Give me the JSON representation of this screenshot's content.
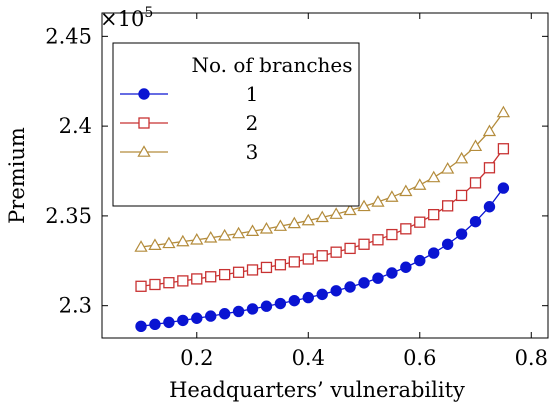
{
  "chart_data": {
    "type": "line",
    "title": "",
    "xlabel": "Headquarters’ vulnerability",
    "ylabel": "Premium",
    "y_multiplier_label": "×10",
    "y_multiplier_exponent": "5",
    "xlim": [
      0.03,
      0.83
    ],
    "ylim": [
      2.282,
      2.463
    ],
    "x_ticks": [
      0.2,
      0.4,
      0.6,
      0.8
    ],
    "x_tick_labels": [
      "0.2",
      "0.4",
      "0.6",
      "0.8"
    ],
    "y_ticks": [
      2.3,
      2.35,
      2.4,
      2.45
    ],
    "y_tick_labels": [
      "2.3",
      "2.35",
      "2.4",
      "2.45"
    ],
    "grid": false,
    "legend": {
      "title": "No. of branches",
      "placement": "top-left"
    },
    "x": [
      0.1,
      0.125,
      0.15,
      0.175,
      0.2,
      0.225,
      0.25,
      0.275,
      0.3,
      0.325,
      0.35,
      0.375,
      0.4,
      0.425,
      0.45,
      0.475,
      0.5,
      0.525,
      0.55,
      0.575,
      0.6,
      0.625,
      0.65,
      0.675,
      0.7,
      0.725,
      0.75
    ],
    "series": [
      {
        "name": "1",
        "color": "#0a14d2",
        "marker": "circle",
        "values": [
          2.2885,
          2.2896,
          2.2907,
          2.2918,
          2.293,
          2.2942,
          2.2955,
          2.2968,
          2.2982,
          2.2997,
          2.3012,
          2.3028,
          2.3045,
          2.3063,
          2.3083,
          2.3104,
          2.3127,
          2.3153,
          2.3182,
          2.3214,
          2.3251,
          2.3293,
          2.3342,
          2.3399,
          2.3468,
          2.3551,
          2.3655
        ]
      },
      {
        "name": "2",
        "color": "#c83232",
        "marker": "square",
        "values": [
          2.3108,
          2.3118,
          2.3128,
          2.3138,
          2.3149,
          2.3161,
          2.3173,
          2.3186,
          2.3199,
          2.3213,
          2.3228,
          2.3244,
          2.326,
          2.3278,
          2.3298,
          2.3319,
          2.3342,
          2.3367,
          2.3396,
          2.3428,
          2.3465,
          2.3507,
          2.3556,
          2.3614,
          2.3684,
          2.3768,
          2.3874
        ]
      },
      {
        "name": "3",
        "color": "#b48c3c",
        "marker": "triangle",
        "values": [
          2.3327,
          2.3337,
          2.3347,
          2.3357,
          2.3367,
          2.3378,
          2.339,
          2.3402,
          2.3415,
          2.3428,
          2.3443,
          2.3458,
          2.3474,
          2.3492,
          2.351,
          2.3531,
          2.3553,
          2.3578,
          2.3605,
          2.3637,
          2.3672,
          2.3714,
          2.3762,
          2.3819,
          2.3888,
          2.3971,
          2.4076
        ]
      }
    ]
  }
}
